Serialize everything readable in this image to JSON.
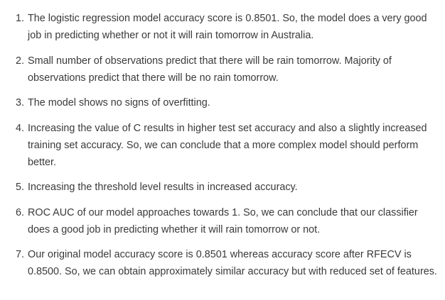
{
  "conclusions": {
    "items": [
      {
        "number": "1.",
        "text": "The logistic regression model accuracy score is 0.8501. So, the model does a very good job in predicting whether or not it will rain tomorrow in Australia."
      },
      {
        "number": "2.",
        "text": "Small number of observations predict that there will be rain tomorrow. Majority of observations predict that there will be no rain tomorrow."
      },
      {
        "number": "3.",
        "text": "The model shows no signs of overfitting."
      },
      {
        "number": "4.",
        "text": "Increasing the value of C results in higher test set accuracy and also a slightly increased training set accuracy. So, we can conclude that a more complex model should perform better."
      },
      {
        "number": "5.",
        "text": "Increasing the threshold level results in increased accuracy."
      },
      {
        "number": "6.",
        "text": "ROC AUC of our model approaches towards 1. So, we can conclude that our classifier does a good job in predicting whether it will rain tomorrow or not."
      },
      {
        "number": "7.",
        "text": "Our original model accuracy score is 0.8501 whereas accuracy score after RFECV is 0.8500. So, we can obtain approximately similar accuracy but with reduced set of features."
      }
    ]
  }
}
